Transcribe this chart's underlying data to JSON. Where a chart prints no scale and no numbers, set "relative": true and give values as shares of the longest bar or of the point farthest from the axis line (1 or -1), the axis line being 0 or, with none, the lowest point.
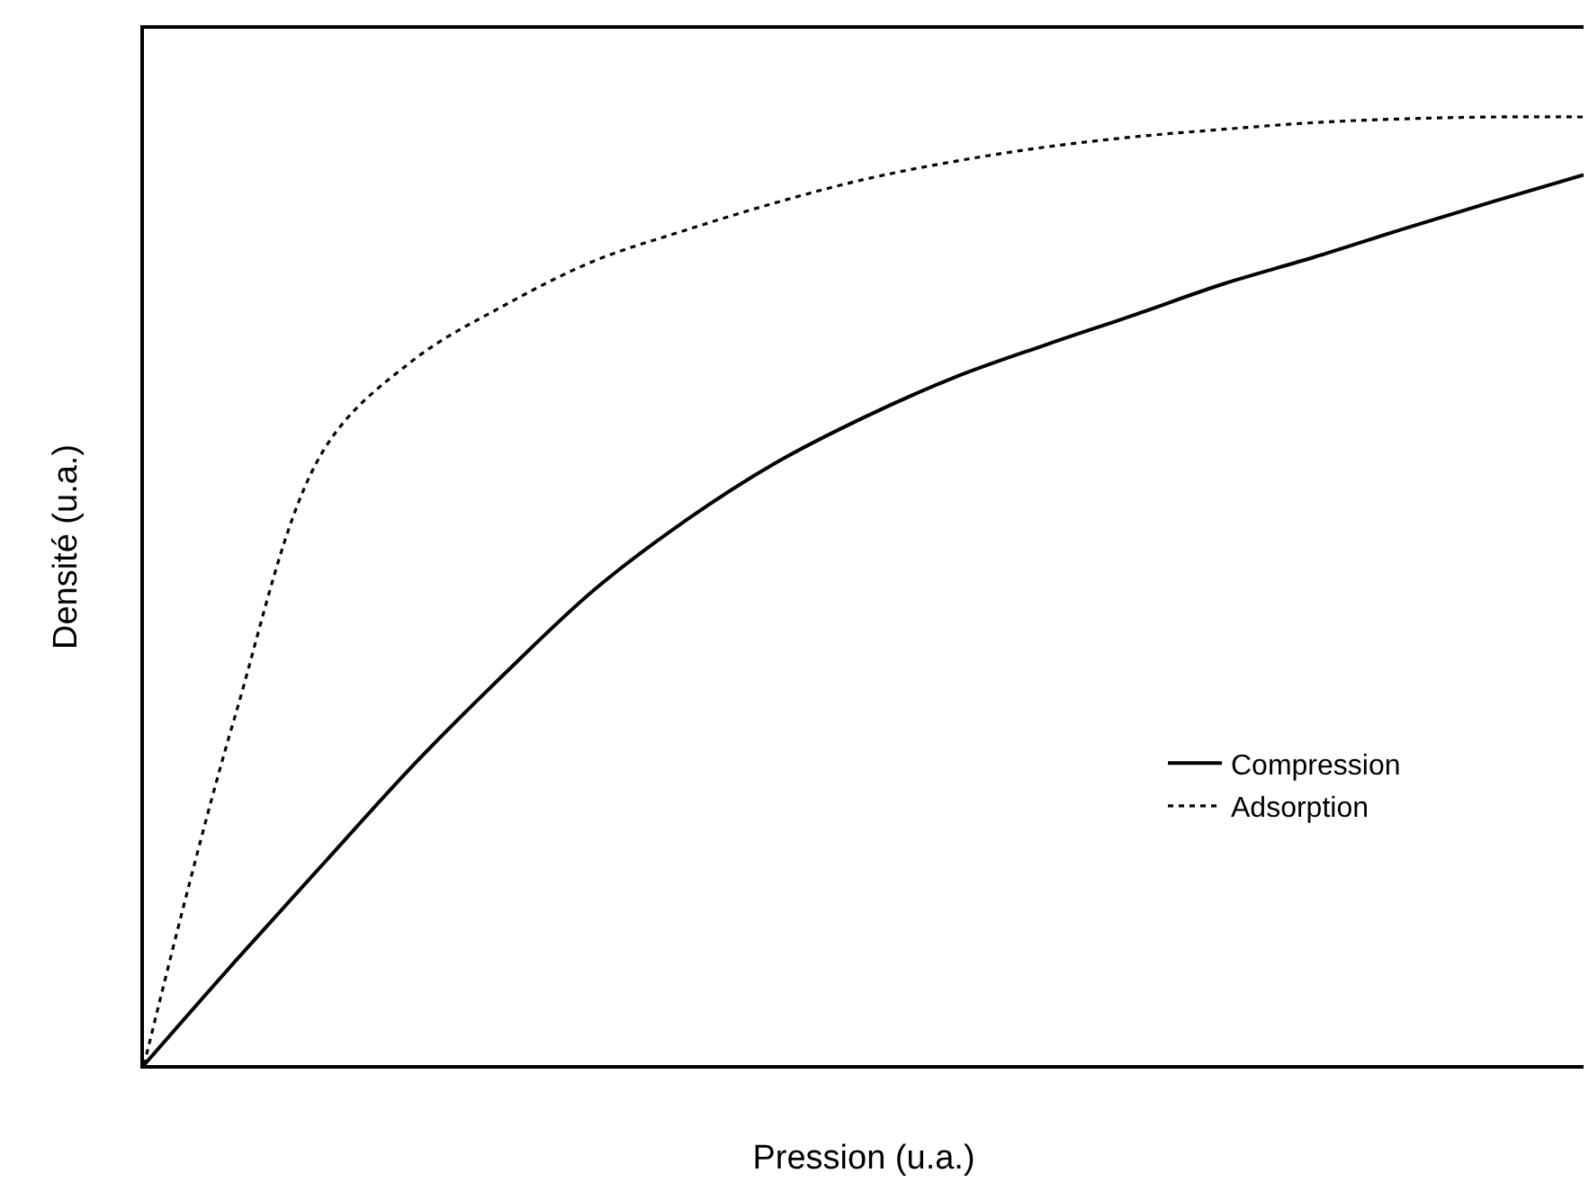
{
  "chart_data": {
    "type": "line",
    "relative": true,
    "xlabel": "Pression (u.a.)",
    "ylabel": "Densité (u.a.)",
    "categories": [
      null,
      null,
      null,
      null,
      null,
      null,
      null,
      null,
      null,
      null,
      null,
      null,
      null,
      null,
      null,
      null,
      null
    ],
    "series": [
      {
        "name": "Compression",
        "color": "#000000",
        "line_style": "solid",
        "values": [
          0,
          0.108,
          0.213,
          0.317,
          0.412,
          0.501,
          0.573,
          0.634,
          0.683,
          0.725,
          0.759,
          0.791,
          0.824,
          0.852,
          0.882,
          0.911,
          0.939
        ]
      },
      {
        "name": "Adsorption",
        "color": "#000000",
        "line_style": "dotted",
        "values": [
          0,
          0.364,
          0.649,
          0.744,
          0.801,
          0.848,
          0.88,
          0.909,
          0.934,
          0.953,
          0.968,
          0.979,
          0.987,
          0.994,
          0.998,
          1,
          1
        ]
      }
    ],
    "legend": "bottom right",
    "marker": "none"
  }
}
